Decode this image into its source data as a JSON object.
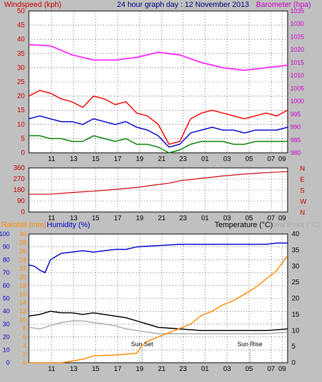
{
  "header": {
    "left_label": "Windspeed (kph)",
    "title": "24 hour graph day : 12 November 2013",
    "right_label": "Barometer (hpa)"
  },
  "colors": {
    "frame_bg": "#c0c0c0",
    "plot_bg": "#ffffff",
    "grid": "#000000",
    "wind_gust": "#ff0000",
    "wind_avg": "#0000cc",
    "wind_min": "#008000",
    "barometer": "#ff33ff",
    "direction": "#cc0000",
    "humidity": "#0000cc",
    "temperature": "#000000",
    "dewpoint": "#aaaaaa",
    "rainfall": "#ff8800",
    "axis_red": "#cc0000",
    "axis_blue": "#0000cc",
    "axis_orange": "#ff8800",
    "axis_purple": "#cc00cc"
  },
  "chart_data": [
    {
      "type": "line",
      "name": "wind-barometer",
      "x_ticks": [
        "11",
        "13",
        "15",
        "17",
        "19",
        "21",
        "23",
        "01",
        "03",
        "05",
        "07",
        "09"
      ],
      "left_axis": {
        "label": "Windspeed (kph)",
        "ticks": [
          0,
          5,
          10,
          15,
          20,
          25,
          30,
          35,
          40,
          45,
          50
        ],
        "ylim": [
          0,
          50
        ]
      },
      "right_axis": {
        "label": "Barometer (hpa)",
        "ticks": [
          980,
          985,
          990,
          995,
          1000,
          1005,
          1010,
          1015,
          1020,
          1025,
          1030,
          1035
        ],
        "ylim": [
          980,
          1035
        ]
      },
      "series": [
        {
          "name": "",
          "color": "#ff0000",
          "x": [
            0,
            1,
            2,
            3,
            4,
            5,
            6,
            7,
            8,
            9,
            10,
            11,
            12,
            13,
            14,
            15,
            16,
            17,
            18,
            19,
            20,
            21,
            22,
            23,
            24
          ],
          "values": [
            20,
            22,
            21,
            19,
            18,
            16,
            20,
            19,
            17,
            18,
            14,
            13,
            10,
            3,
            4,
            12,
            14,
            15,
            14,
            13,
            12,
            13,
            14,
            13,
            15
          ]
        },
        {
          "name": "",
          "color": "#0000cc",
          "x": [
            0,
            1,
            2,
            3,
            4,
            5,
            6,
            7,
            8,
            9,
            10,
            11,
            12,
            13,
            14,
            15,
            16,
            17,
            18,
            19,
            20,
            21,
            22,
            23,
            24
          ],
          "values": [
            12,
            13,
            12,
            11,
            11,
            10,
            12,
            11,
            10,
            11,
            9,
            8,
            6,
            2,
            3,
            7,
            8,
            9,
            8,
            8,
            7,
            8,
            8,
            8,
            9
          ]
        },
        {
          "name": "",
          "color": "#008000",
          "x": [
            0,
            1,
            2,
            3,
            4,
            5,
            6,
            7,
            8,
            9,
            10,
            11,
            12,
            13,
            14,
            15,
            16,
            17,
            18,
            19,
            20,
            21,
            22,
            23,
            24
          ],
          "values": [
            6,
            6,
            5,
            5,
            4,
            4,
            6,
            5,
            4,
            5,
            3,
            3,
            2,
            0,
            1,
            3,
            4,
            4,
            4,
            3,
            3,
            4,
            4,
            4,
            4
          ]
        },
        {
          "name": "",
          "color": "#ff33ff",
          "axis": "right",
          "x": [
            0,
            2,
            4,
            6,
            8,
            10,
            12,
            14,
            16,
            18,
            20,
            22,
            24
          ],
          "values": [
            1022,
            1021.5,
            1018,
            1016,
            1016,
            1017,
            1019,
            1018,
            1015,
            1013,
            1012,
            1013,
            1014
          ]
        }
      ]
    },
    {
      "type": "line",
      "name": "wind-direction",
      "x_ticks": [
        "11",
        "13",
        "15",
        "17",
        "19",
        "21",
        "23",
        "01",
        "03",
        "05",
        "07",
        "09"
      ],
      "left_axis": {
        "ticks": [
          0,
          90,
          180,
          270,
          360
        ],
        "ylim": [
          0,
          360
        ]
      },
      "right_axis": {
        "ticks": [
          "N",
          "W",
          "S",
          "E",
          "N"
        ]
      },
      "series": [
        {
          "name": "",
          "color": "#cc0000",
          "x": [
            0,
            2,
            4,
            6,
            8,
            10,
            12,
            13,
            14,
            16,
            18,
            20,
            22,
            24
          ],
          "values": [
            145,
            145,
            160,
            170,
            185,
            200,
            225,
            235,
            255,
            275,
            295,
            310,
            322,
            330
          ]
        }
      ]
    },
    {
      "type": "line",
      "name": "rain-humidity-temperature",
      "header": {
        "rain_label": "Rainfall (mm)",
        "humidity_label": "Humidity (%)",
        "temperature_label": "Temperature (°C)",
        "dewpoint_label": "Dew Point (°C)"
      },
      "x_ticks": [
        "11",
        "13",
        "15",
        "17",
        "19",
        "21",
        "23",
        "01",
        "03",
        "05",
        "07",
        "09"
      ],
      "humidity_axis": {
        "ticks": [
          0,
          10,
          20,
          30,
          40,
          50,
          60,
          70,
          80,
          90,
          100
        ],
        "ylim": [
          0,
          100
        ]
      },
      "rain_axis": {
        "ticks": [
          0,
          2,
          4,
          6,
          8,
          10,
          12,
          14,
          16,
          18,
          20,
          22,
          24,
          26,
          28,
          30
        ],
        "ylim": [
          0,
          30
        ]
      },
      "temp_axis": {
        "ticks": [
          0,
          5,
          10,
          15,
          20,
          25,
          30,
          35,
          40
        ],
        "ylim": [
          0,
          40
        ]
      },
      "annotations": [
        {
          "text": "Sun Set",
          "x": 10.5
        },
        {
          "text": "Sun Rise",
          "x": 20.5
        }
      ],
      "series": [
        {
          "name": "",
          "color": "#0000cc",
          "axis": "humidity",
          "x": [
            0,
            0.5,
            1,
            1.5,
            2,
            3,
            4,
            5,
            6,
            7,
            8,
            9,
            10,
            12,
            14,
            16,
            18,
            20,
            22,
            23,
            24
          ],
          "values": [
            76,
            75,
            72,
            70,
            80,
            85,
            86,
            87,
            86,
            87,
            88,
            88,
            90,
            91,
            92,
            92,
            92,
            92,
            92,
            93,
            93
          ]
        },
        {
          "name": "",
          "color": "#000000",
          "axis": "temp",
          "x": [
            0,
            1,
            2,
            3,
            4,
            5,
            6,
            7,
            8,
            9,
            10,
            11,
            12,
            14,
            16,
            18,
            20,
            22,
            24
          ],
          "values": [
            14.5,
            15,
            16,
            15.5,
            15.5,
            15,
            15.5,
            15,
            14.5,
            14,
            13,
            12,
            11,
            10.5,
            10,
            10,
            10,
            10,
            10.5
          ]
        },
        {
          "name": "",
          "color": "#aaaaaa",
          "axis": "temp",
          "x": [
            0,
            1,
            2,
            3,
            4,
            5,
            6,
            7,
            8,
            9,
            10,
            11,
            12,
            14,
            16,
            18,
            20,
            22,
            24
          ],
          "values": [
            11,
            10.5,
            11.5,
            12.5,
            13,
            13,
            12.5,
            12,
            11.5,
            10.5,
            10,
            9.5,
            9,
            9,
            9,
            9,
            9,
            9,
            9.5
          ]
        },
        {
          "name": "",
          "color": "#ff8800",
          "axis": "rain",
          "x": [
            0,
            3,
            4,
            5,
            6,
            8,
            9,
            10,
            10.5,
            11,
            12,
            13,
            14,
            15,
            16,
            17,
            18,
            19,
            20,
            21,
            22,
            23,
            24
          ],
          "values": [
            0,
            0,
            0.4,
            0.8,
            1.6,
            1.8,
            2.0,
            2.2,
            4.0,
            5.0,
            6.0,
            7.0,
            8.0,
            9.0,
            11.0,
            12.0,
            13.5,
            14.5,
            16.0,
            17.5,
            19.5,
            21.5,
            25.0
          ]
        }
      ]
    }
  ]
}
